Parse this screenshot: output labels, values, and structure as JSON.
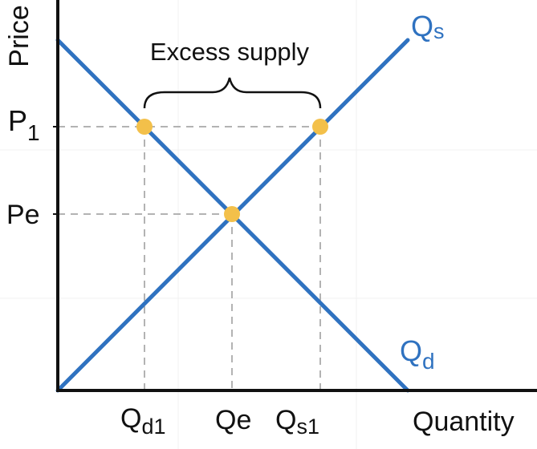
{
  "colors": {
    "curve": "#2f72c0",
    "point": "#f3c04a",
    "axis": "#111111",
    "guide": "#9a9a9a",
    "background": "#ffffff"
  },
  "labels": {
    "y_axis": "Price",
    "x_axis": "Quantity",
    "price_high_main": "P",
    "price_high_sub": "1",
    "price_eq": "Pe",
    "qty_demand_main": "Q",
    "qty_demand_sub": "d1",
    "qty_eq": "Qe",
    "qty_supply_main": "Q",
    "qty_supply_sub": "s1",
    "supply_curve_main": "Q",
    "supply_curve_sub": "s",
    "demand_curve_main": "Q",
    "demand_curve_sub": "d",
    "annotation": "Excess supply"
  }
}
